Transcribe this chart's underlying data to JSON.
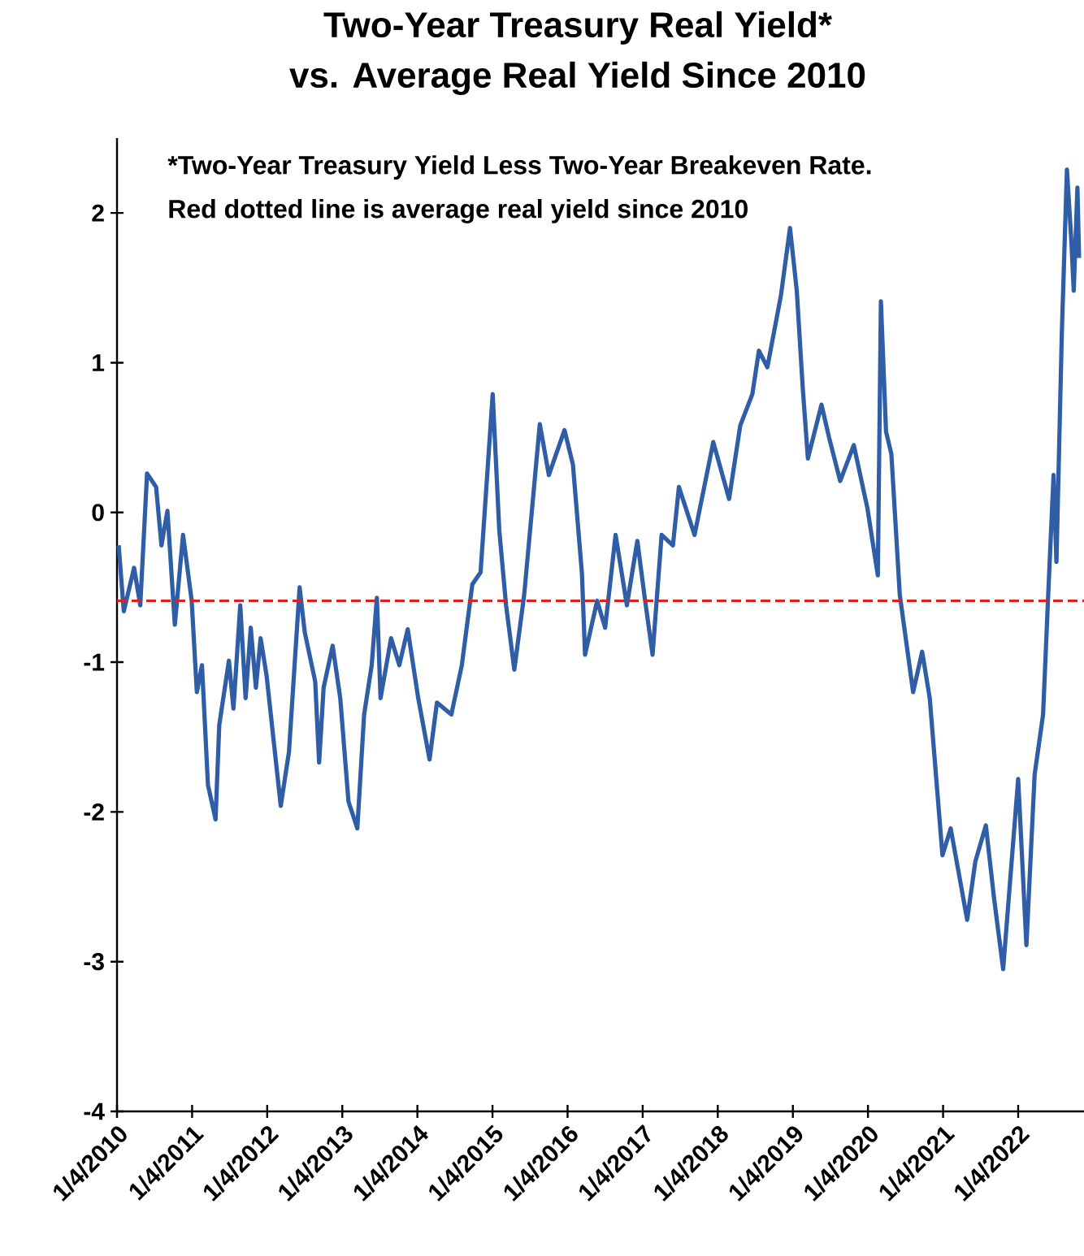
{
  "chart_data": {
    "type": "line",
    "title": "Two-Year Treasury Real Yield*\nvs. Average Real Yield Since 2010",
    "annotations": [
      "*Two-Year Treasury Yield Less Two-Year Breakeven Rate.",
      "Red dotted line is average real yield since 2010"
    ],
    "xlim": [
      "2010-01-04",
      "2022-11-20"
    ],
    "xticks": [
      {
        "value": "2010-01-04",
        "label": "1/4/2010"
      },
      {
        "value": "2011-01-04",
        "label": "1/4/2011"
      },
      {
        "value": "2012-01-04",
        "label": "1/4/2012"
      },
      {
        "value": "2013-01-04",
        "label": "1/4/2013"
      },
      {
        "value": "2014-01-04",
        "label": "1/4/2014"
      },
      {
        "value": "2015-01-04",
        "label": "1/4/2015"
      },
      {
        "value": "2016-01-04",
        "label": "1/4/2016"
      },
      {
        "value": "2017-01-04",
        "label": "1/4/2017"
      },
      {
        "value": "2018-01-04",
        "label": "1/4/2018"
      },
      {
        "value": "2019-01-04",
        "label": "1/4/2019"
      },
      {
        "value": "2020-01-04",
        "label": "1/4/2020"
      },
      {
        "value": "2021-01-04",
        "label": "1/4/2021"
      },
      {
        "value": "2022-01-04",
        "label": "1/4/2022"
      }
    ],
    "ylim": [
      -4,
      2.5
    ],
    "yticks": [
      -4,
      -3,
      -2,
      -1,
      0,
      1,
      2
    ],
    "marker": "none",
    "line_style": "solid",
    "ref_lines": [
      {
        "axis": "y",
        "value": -0.59,
        "color": "#e02020",
        "line_style": "dashed"
      }
    ],
    "series": [
      {
        "color": "#2f5da6",
        "x": [
          "2010-01-12",
          "2010-02-06",
          "2010-03-28",
          "2010-04-27",
          "2010-05-30",
          "2010-07-13",
          "2010-08-08",
          "2010-09-06",
          "2010-10-12",
          "2010-11-21",
          "2011-01-02",
          "2011-01-27",
          "2011-02-21",
          "2011-03-22",
          "2011-04-28",
          "2011-05-16",
          "2011-07-02",
          "2011-07-24",
          "2011-08-26",
          "2011-09-21",
          "2011-10-16",
          "2011-11-10",
          "2011-12-03",
          "2012-01-01",
          "2012-03-10",
          "2012-04-19",
          "2012-06-10",
          "2012-07-05",
          "2012-08-25",
          "2012-09-13",
          "2012-10-05",
          "2012-11-18",
          "2012-12-25",
          "2013-02-03",
          "2013-03-18",
          "2013-04-20",
          "2013-05-27",
          "2013-06-21",
          "2013-07-09",
          "2013-08-29",
          "2013-10-08",
          "2013-11-18",
          "2014-01-08",
          "2014-03-04",
          "2014-04-09",
          "2014-06-18",
          "2014-08-08",
          "2014-09-28",
          "2014-11-07",
          "2015-01-05",
          "2015-02-06",
          "2015-03-11",
          "2015-04-20",
          "2015-06-07",
          "2015-08-22",
          "2015-10-05",
          "2015-12-20",
          "2016-01-30",
          "2016-03-14",
          "2016-03-29",
          "2016-05-27",
          "2016-07-05",
          "2016-08-25",
          "2016-10-19",
          "2016-12-09",
          "2017-01-12",
          "2017-02-21",
          "2017-04-06",
          "2017-05-31",
          "2017-06-29",
          "2017-09-13",
          "2017-12-13",
          "2018-02-28",
          "2018-04-23",
          "2018-06-21",
          "2018-07-23",
          "2018-09-02",
          "2018-11-07",
          "2018-12-21",
          "2019-01-23",
          "2019-02-21",
          "2019-03-18",
          "2019-05-23",
          "2019-06-29",
          "2019-08-22",
          "2019-10-27",
          "2020-01-01",
          "2020-02-21",
          "2020-03-07",
          "2020-04-01",
          "2020-04-27",
          "2020-06-07",
          "2020-08-11",
          "2020-09-24",
          "2020-10-31",
          "2021-01-01",
          "2021-02-10",
          "2021-05-01",
          "2021-06-10",
          "2021-07-31",
          "2021-09-09",
          "2021-10-23",
          "2022-01-04",
          "2022-02-13",
          "2022-03-25",
          "2022-05-05",
          "2022-05-30",
          "2022-06-25",
          "2022-07-09",
          "2022-08-04",
          "2022-08-29",
          "2022-09-20",
          "2022-10-01",
          "2022-10-19",
          "2022-10-27"
        ],
        "values": [
          -0.22,
          -0.66,
          -0.37,
          -0.62,
          0.26,
          0.17,
          -0.22,
          0.01,
          -0.75,
          -0.15,
          -0.59,
          -1.2,
          -1.02,
          -1.82,
          -2.05,
          -1.42,
          -0.99,
          -1.31,
          -0.62,
          -1.24,
          -0.77,
          -1.17,
          -0.84,
          -1.09,
          -1.96,
          -1.6,
          -0.5,
          -0.8,
          -1.13,
          -1.67,
          -1.17,
          -0.89,
          -1.24,
          -1.93,
          -2.11,
          -1.35,
          -1.02,
          -0.57,
          -1.24,
          -0.84,
          -1.02,
          -0.78,
          -1.24,
          -1.65,
          -1.27,
          -1.35,
          -1.02,
          -0.48,
          -0.4,
          0.79,
          -0.12,
          -0.62,
          -1.05,
          -0.55,
          0.59,
          0.25,
          0.55,
          0.32,
          -0.41,
          -0.95,
          -0.59,
          -0.77,
          -0.15,
          -0.62,
          -0.19,
          -0.55,
          -0.95,
          -0.15,
          -0.22,
          0.17,
          -0.15,
          0.47,
          0.09,
          0.58,
          0.79,
          1.08,
          0.97,
          1.45,
          1.9,
          1.48,
          0.83,
          0.36,
          0.72,
          0.5,
          0.21,
          0.45,
          0.03,
          -0.42,
          1.41,
          0.54,
          0.39,
          -0.55,
          -1.2,
          -0.93,
          -1.24,
          -2.29,
          -2.11,
          -2.72,
          -2.33,
          -2.09,
          -2.58,
          -3.05,
          -1.78,
          -2.89,
          -1.75,
          -1.35,
          -0.55,
          0.25,
          -0.33,
          1.19,
          2.29,
          1.8,
          1.48,
          2.17,
          1.7
        ]
      }
    ]
  }
}
